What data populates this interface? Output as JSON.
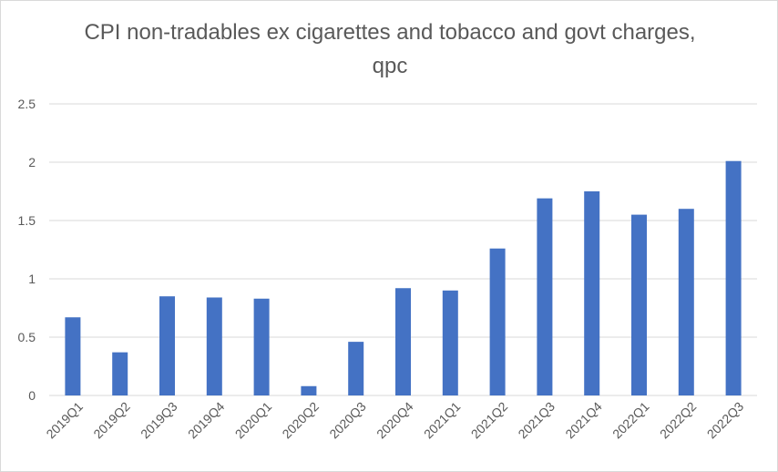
{
  "chart_data": {
    "type": "bar",
    "title": "CPI non-tradables ex cigarettes and tobacco and govt charges, qpc",
    "xlabel": "",
    "ylabel": "",
    "categories": [
      "2019Q1",
      "2019Q2",
      "2019Q3",
      "2019Q4",
      "2020Q1",
      "2020Q2",
      "2020Q3",
      "2020Q4",
      "2021Q1",
      "2021Q2",
      "2021Q3",
      "2021Q4",
      "2022Q1",
      "2022Q2",
      "2022Q3"
    ],
    "values": [
      0.67,
      0.37,
      0.85,
      0.84,
      0.83,
      0.08,
      0.46,
      0.92,
      0.9,
      1.26,
      1.69,
      1.75,
      1.55,
      1.6,
      2.01
    ],
    "ylim": [
      0,
      2.5
    ],
    "yticks": [
      "0",
      "0.5",
      "1",
      "1.5",
      "2",
      "2.5"
    ],
    "grid": true,
    "legend": "none",
    "bar_color": "#4472c4"
  }
}
